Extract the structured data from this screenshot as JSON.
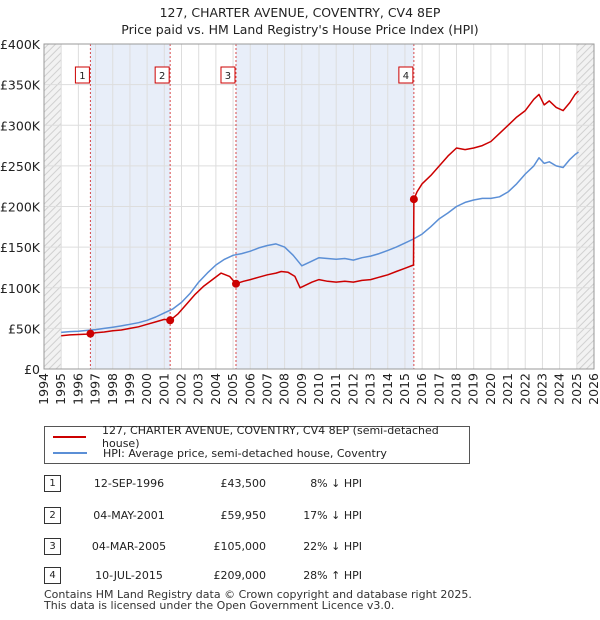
{
  "chart_data": {
    "type": "line",
    "title": "127, CHARTER AVENUE, COVENTRY, CV4 8EP",
    "subtitle": "Price paid vs. HM Land Registry's House Price Index (HPI)",
    "ylim": [
      0,
      400000
    ],
    "xlim": [
      1994,
      2026
    ],
    "y_ticks": [
      {
        "value": 0,
        "label": "£0"
      },
      {
        "value": 50000,
        "label": "£50K"
      },
      {
        "value": 100000,
        "label": "£100K"
      },
      {
        "value": 150000,
        "label": "£150K"
      },
      {
        "value": 200000,
        "label": "£200K"
      },
      {
        "value": 250000,
        "label": "£250K"
      },
      {
        "value": 300000,
        "label": "£300K"
      },
      {
        "value": 350000,
        "label": "£350K"
      },
      {
        "value": 400000,
        "label": "£400K"
      }
    ],
    "x_ticks": [
      "1994",
      "1995",
      "1996",
      "1997",
      "1998",
      "1999",
      "2000",
      "2001",
      "2002",
      "2003",
      "2004",
      "2005",
      "2006",
      "2007",
      "2008",
      "2009",
      "2010",
      "2011",
      "2012",
      "2013",
      "2014",
      "2015",
      "2016",
      "2017",
      "2018",
      "2019",
      "2020",
      "2021",
      "2022",
      "2023",
      "2024",
      "2025",
      "2026"
    ],
    "shaded_ranges": [
      [
        1996.7,
        2001.34
      ],
      [
        2005.17,
        2015.52
      ]
    ],
    "hatched_ranges": [
      [
        1994,
        1995
      ],
      [
        2025,
        2026
      ]
    ],
    "series": [
      {
        "name": "127, CHARTER AVENUE, COVENTRY, CV4 8EP (semi-detached house)",
        "color": "#cc0000",
        "x": [
          1995.0,
          1995.5,
          1996.0,
          1996.5,
          1996.7,
          1997.0,
          1997.5,
          1998.0,
          1998.5,
          1999.0,
          1999.5,
          2000.0,
          2000.5,
          2001.0,
          2001.34,
          2001.8,
          2002.3,
          2002.8,
          2003.3,
          2003.8,
          2004.3,
          2004.8,
          2005.17,
          2005.6,
          2006.0,
          2006.5,
          2007.0,
          2007.5,
          2007.8,
          2008.2,
          2008.6,
          2008.9,
          2009.2,
          2009.6,
          2010.0,
          2010.5,
          2011.0,
          2011.5,
          2012.0,
          2012.5,
          2013.0,
          2013.5,
          2014.0,
          2014.5,
          2015.0,
          2015.5,
          2015.52,
          2015.7,
          2016.0,
          2016.5,
          2017.0,
          2017.5,
          2018.0,
          2018.5,
          2019.0,
          2019.5,
          2020.0,
          2020.5,
          2021.0,
          2021.5,
          2022.0,
          2022.5,
          2022.8,
          2023.1,
          2023.4,
          2023.8,
          2024.2,
          2024.6,
          2024.9,
          2025.1
        ],
        "values": [
          41000,
          42000,
          42500,
          43000,
          43500,
          44500,
          45500,
          47000,
          48000,
          50000,
          52000,
          55000,
          58000,
          61000,
          59950,
          68000,
          80000,
          92000,
          102000,
          110000,
          118000,
          114000,
          105000,
          108000,
          110000,
          113000,
          116000,
          118000,
          120000,
          119000,
          114000,
          100000,
          103000,
          107000,
          110000,
          108000,
          107000,
          108000,
          107000,
          109000,
          110000,
          113000,
          116000,
          120000,
          124000,
          128000,
          209000,
          218000,
          228000,
          238000,
          250000,
          262000,
          272000,
          270000,
          272000,
          275000,
          280000,
          290000,
          300000,
          310000,
          318000,
          332000,
          338000,
          325000,
          330000,
          322000,
          318000,
          328000,
          338000,
          342000
        ]
      },
      {
        "name": "HPI: Average price, semi-detached house, Coventry",
        "color": "#5b8fd6",
        "x": [
          1995.0,
          1995.5,
          1996.0,
          1996.5,
          1997.0,
          1997.5,
          1998.0,
          1998.5,
          1999.0,
          1999.5,
          2000.0,
          2000.5,
          2001.0,
          2001.5,
          2002.0,
          2002.5,
          2003.0,
          2003.5,
          2004.0,
          2004.5,
          2005.0,
          2005.5,
          2006.0,
          2006.5,
          2007.0,
          2007.5,
          2008.0,
          2008.5,
          2009.0,
          2009.5,
          2010.0,
          2010.5,
          2011.0,
          2011.5,
          2012.0,
          2012.5,
          2013.0,
          2013.5,
          2014.0,
          2014.5,
          2015.0,
          2015.5,
          2016.0,
          2016.5,
          2017.0,
          2017.5,
          2018.0,
          2018.5,
          2019.0,
          2019.5,
          2020.0,
          2020.5,
          2021.0,
          2021.5,
          2022.0,
          2022.5,
          2022.8,
          2023.1,
          2023.4,
          2023.8,
          2024.2,
          2024.6,
          2024.9,
          2025.1
        ],
        "values": [
          45000,
          46000,
          46500,
          47500,
          48500,
          50000,
          51500,
          53000,
          55000,
          57000,
          60000,
          64000,
          69000,
          74000,
          82000,
          93000,
          107000,
          118000,
          128000,
          135000,
          140000,
          142000,
          145000,
          149000,
          152000,
          154000,
          150000,
          140000,
          127000,
          132000,
          137000,
          136000,
          135000,
          136000,
          134000,
          137000,
          139000,
          142000,
          146000,
          150000,
          155000,
          160000,
          166000,
          175000,
          185000,
          192000,
          200000,
          205000,
          208000,
          210000,
          210000,
          212000,
          218000,
          228000,
          240000,
          250000,
          260000,
          253000,
          255000,
          250000,
          248000,
          258000,
          264000,
          267000
        ]
      }
    ],
    "sales": [
      {
        "num": "1",
        "x": 1996.7,
        "price_value": 43500,
        "date": "12-SEP-1996",
        "price": "£43,500",
        "hpi": "8% ↓ HPI"
      },
      {
        "num": "2",
        "x": 2001.34,
        "price_value": 59950,
        "date": "04-MAY-2001",
        "price": "£59,950",
        "hpi": "17% ↓ HPI"
      },
      {
        "num": "3",
        "x": 2005.17,
        "price_value": 105000,
        "date": "04-MAR-2005",
        "price": "£105,000",
        "hpi": "22% ↓ HPI"
      },
      {
        "num": "4",
        "x": 2015.52,
        "price_value": 209000,
        "date": "10-JUL-2015",
        "price": "£209,000",
        "hpi": "28% ↑ HPI"
      }
    ]
  },
  "legend": {
    "property_label": "127, CHARTER AVENUE, COVENTRY, CV4 8EP (semi-detached house)",
    "hpi_label": "HPI: Average price, semi-detached house, Coventry",
    "property_color": "#cc0000",
    "hpi_color": "#5b8fd6"
  },
  "footer": {
    "line1": "Contains HM Land Registry data © Crown copyright and database right 2025.",
    "line2": "This data is licensed under the Open Government Licence v3.0."
  }
}
